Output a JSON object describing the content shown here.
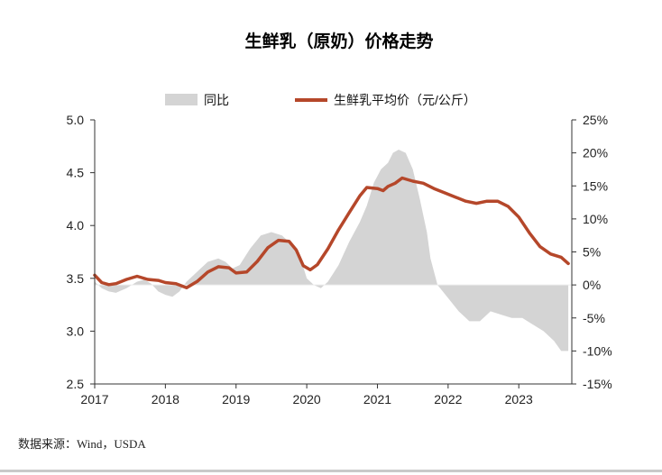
{
  "source_label": "数据来源：Wind，USDA",
  "chart_data": {
    "type": "line",
    "title": "生鲜乳（原奶）价格走势",
    "legend": [
      "同比",
      "生鲜乳平均价（元/公斤）"
    ],
    "legend_position": "top",
    "colors": {
      "price": "#b5472a",
      "yoy": "#d4d4d4"
    },
    "x_tick_labels": [
      "2017",
      "2018",
      "2019",
      "2020",
      "2021",
      "2022",
      "2023"
    ],
    "xlim": [
      2017.0,
      2023.75
    ],
    "y_left": {
      "lim": [
        2.5,
        5.0
      ],
      "ticks": [
        "2.5",
        "3.0",
        "3.5",
        "4.0",
        "4.5",
        "5.0"
      ]
    },
    "y_right": {
      "lim": [
        -15,
        25
      ],
      "ticks": [
        "-15%",
        "-10%",
        "-5%",
        "0%",
        "5%",
        "10%",
        "15%",
        "20%",
        "25%"
      ]
    },
    "grid": false,
    "series": [
      {
        "name": "生鲜乳平均价（元/公斤）",
        "kind": "line",
        "axis": "left",
        "x": [
          2017.0,
          2017.1,
          2017.2,
          2017.3,
          2017.45,
          2017.6,
          2017.75,
          2017.9,
          2018.0,
          2018.15,
          2018.3,
          2018.45,
          2018.6,
          2018.75,
          2018.9,
          2019.0,
          2019.15,
          2019.3,
          2019.45,
          2019.6,
          2019.75,
          2019.85,
          2019.95,
          2020.05,
          2020.15,
          2020.3,
          2020.45,
          2020.6,
          2020.75,
          2020.85,
          2021.0,
          2021.08,
          2021.15,
          2021.25,
          2021.35,
          2021.5,
          2021.65,
          2021.8,
          2021.95,
          2022.1,
          2022.25,
          2022.4,
          2022.55,
          2022.7,
          2022.85,
          2023.0,
          2023.15,
          2023.3,
          2023.45,
          2023.6,
          2023.7
        ],
        "values": [
          3.53,
          3.46,
          3.44,
          3.45,
          3.49,
          3.52,
          3.49,
          3.48,
          3.46,
          3.45,
          3.41,
          3.47,
          3.56,
          3.61,
          3.6,
          3.55,
          3.56,
          3.66,
          3.79,
          3.86,
          3.85,
          3.77,
          3.62,
          3.58,
          3.63,
          3.78,
          3.96,
          4.12,
          4.28,
          4.36,
          4.35,
          4.33,
          4.37,
          4.4,
          4.45,
          4.42,
          4.4,
          4.35,
          4.31,
          4.27,
          4.23,
          4.21,
          4.23,
          4.23,
          4.18,
          4.08,
          3.93,
          3.8,
          3.73,
          3.7,
          3.64
        ]
      },
      {
        "name": "同比",
        "kind": "area",
        "axis": "right",
        "x": [
          2017.0,
          2017.1,
          2017.2,
          2017.3,
          2017.45,
          2017.6,
          2017.7,
          2017.8,
          2017.9,
          2018.0,
          2018.1,
          2018.2,
          2018.3,
          2018.45,
          2018.6,
          2018.75,
          2018.85,
          2018.95,
          2019.05,
          2019.2,
          2019.35,
          2019.5,
          2019.65,
          2019.8,
          2019.9,
          2020.0,
          2020.1,
          2020.2,
          2020.3,
          2020.45,
          2020.6,
          2020.75,
          2020.85,
          2020.95,
          2021.05,
          2021.15,
          2021.22,
          2021.3,
          2021.4,
          2021.5,
          2021.6,
          2021.7,
          2021.75,
          2021.85,
          2022.0,
          2022.15,
          2022.3,
          2022.45,
          2022.6,
          2022.75,
          2022.9,
          2023.05,
          2023.2,
          2023.35,
          2023.5,
          2023.6,
          2023.7
        ],
        "values": [
          0.5,
          -0.5,
          -1.0,
          -1.2,
          -0.5,
          0.5,
          0.8,
          0.2,
          -1.0,
          -1.5,
          -1.8,
          -1.0,
          0.5,
          2.0,
          3.5,
          4.0,
          3.5,
          2.5,
          3.0,
          5.5,
          7.5,
          8.0,
          7.5,
          6.0,
          4.5,
          1.0,
          0.0,
          -0.5,
          0.5,
          3.0,
          6.5,
          9.5,
          12.0,
          15.5,
          17.5,
          18.5,
          20.0,
          20.5,
          20.0,
          17.5,
          13.0,
          8.0,
          4.0,
          0.0,
          -2.0,
          -4.0,
          -5.5,
          -5.5,
          -4.0,
          -4.5,
          -5.0,
          -5.0,
          -6.0,
          -7.0,
          -8.5,
          -10.0,
          -10.0
        ]
      }
    ]
  }
}
